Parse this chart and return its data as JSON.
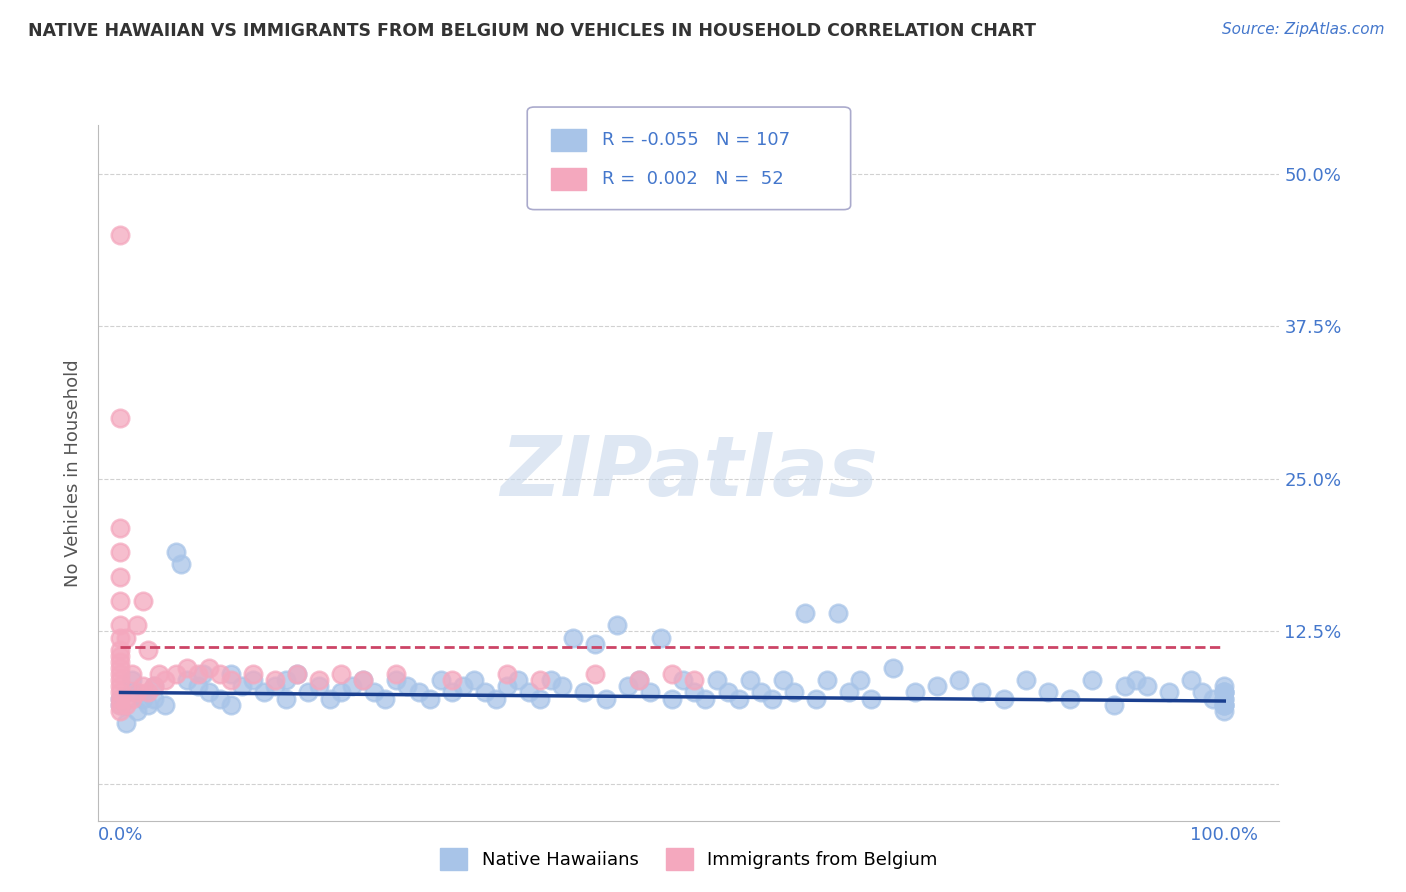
{
  "title": "NATIVE HAWAIIAN VS IMMIGRANTS FROM BELGIUM NO VEHICLES IN HOUSEHOLD CORRELATION CHART",
  "source": "Source: ZipAtlas.com",
  "ylabel": "No Vehicles in Household",
  "xlim": [
    -0.02,
    1.05
  ],
  "ylim": [
    -0.03,
    0.54
  ],
  "ytick_vals": [
    0.0,
    0.125,
    0.25,
    0.375,
    0.5
  ],
  "ytick_labels": [
    "",
    "12.5%",
    "25.0%",
    "37.5%",
    "50.0%"
  ],
  "xtick_vals": [
    0.0,
    0.25,
    0.5,
    0.75,
    1.0
  ],
  "xtick_labels": [
    "0.0%",
    "",
    "",
    "",
    "100.0%"
  ],
  "r_blue": -0.055,
  "n_blue": 107,
  "r_pink": 0.002,
  "n_pink": 52,
  "blue_scatter_color": "#a8c4e8",
  "pink_scatter_color": "#f4a8be",
  "blue_line_color": "#1a3f8f",
  "pink_line_color": "#cc4466",
  "grid_color": "#cccccc",
  "tick_color": "#4477cc",
  "legend_blue_label": "Native Hawaiians",
  "legend_pink_label": "Immigrants from Belgium",
  "watermark": "ZIPatlas",
  "blue_line_y_start": 0.075,
  "blue_line_y_end": 0.068,
  "pink_line_y": 0.112,
  "pink_line_x_end": 1.0,
  "blue_x": [
    0.0,
    0.0,
    0.005,
    0.01,
    0.01,
    0.015,
    0.02,
    0.025,
    0.03,
    0.03,
    0.04,
    0.05,
    0.055,
    0.06,
    0.07,
    0.075,
    0.08,
    0.09,
    0.1,
    0.1,
    0.11,
    0.12,
    0.13,
    0.14,
    0.15,
    0.15,
    0.16,
    0.17,
    0.18,
    0.19,
    0.2,
    0.21,
    0.22,
    0.23,
    0.24,
    0.25,
    0.26,
    0.27,
    0.28,
    0.29,
    0.3,
    0.31,
    0.32,
    0.33,
    0.34,
    0.35,
    0.36,
    0.37,
    0.38,
    0.39,
    0.4,
    0.41,
    0.42,
    0.43,
    0.44,
    0.45,
    0.46,
    0.47,
    0.48,
    0.49,
    0.5,
    0.51,
    0.52,
    0.53,
    0.54,
    0.55,
    0.56,
    0.57,
    0.58,
    0.59,
    0.6,
    0.61,
    0.62,
    0.63,
    0.64,
    0.65,
    0.66,
    0.67,
    0.68,
    0.7,
    0.72,
    0.74,
    0.76,
    0.78,
    0.8,
    0.82,
    0.84,
    0.86,
    0.88,
    0.9,
    0.91,
    0.92,
    0.93,
    0.95,
    0.97,
    0.98,
    0.99,
    1.0,
    1.0,
    1.0,
    1.0,
    1.0,
    1.0,
    1.0,
    1.0,
    1.0,
    1.0
  ],
  "blue_y": [
    0.065,
    0.07,
    0.05,
    0.075,
    0.085,
    0.06,
    0.07,
    0.065,
    0.08,
    0.07,
    0.065,
    0.19,
    0.18,
    0.085,
    0.08,
    0.09,
    0.075,
    0.07,
    0.09,
    0.065,
    0.08,
    0.085,
    0.075,
    0.08,
    0.07,
    0.085,
    0.09,
    0.075,
    0.08,
    0.07,
    0.075,
    0.08,
    0.085,
    0.075,
    0.07,
    0.085,
    0.08,
    0.075,
    0.07,
    0.085,
    0.075,
    0.08,
    0.085,
    0.075,
    0.07,
    0.08,
    0.085,
    0.075,
    0.07,
    0.085,
    0.08,
    0.12,
    0.075,
    0.115,
    0.07,
    0.13,
    0.08,
    0.085,
    0.075,
    0.12,
    0.07,
    0.085,
    0.075,
    0.07,
    0.085,
    0.075,
    0.07,
    0.085,
    0.075,
    0.07,
    0.085,
    0.075,
    0.14,
    0.07,
    0.085,
    0.14,
    0.075,
    0.085,
    0.07,
    0.095,
    0.075,
    0.08,
    0.085,
    0.075,
    0.07,
    0.085,
    0.075,
    0.07,
    0.085,
    0.065,
    0.08,
    0.085,
    0.08,
    0.075,
    0.085,
    0.075,
    0.07,
    0.065,
    0.075,
    0.07,
    0.08,
    0.065,
    0.06,
    0.075,
    0.07,
    0.065,
    0.075
  ],
  "pink_x": [
    0.0,
    0.0,
    0.0,
    0.0,
    0.0,
    0.0,
    0.0,
    0.0,
    0.0,
    0.0,
    0.0,
    0.0,
    0.0,
    0.0,
    0.0,
    0.0,
    0.0,
    0.0,
    0.0,
    0.005,
    0.005,
    0.01,
    0.01,
    0.015,
    0.015,
    0.02,
    0.02,
    0.025,
    0.025,
    0.03,
    0.035,
    0.04,
    0.05,
    0.06,
    0.07,
    0.08,
    0.09,
    0.1,
    0.12,
    0.14,
    0.16,
    0.18,
    0.2,
    0.22,
    0.25,
    0.3,
    0.35,
    0.38,
    0.43,
    0.47,
    0.5,
    0.52
  ],
  "pink_y": [
    0.06,
    0.065,
    0.07,
    0.075,
    0.08,
    0.085,
    0.09,
    0.095,
    0.1,
    0.105,
    0.11,
    0.12,
    0.13,
    0.15,
    0.17,
    0.19,
    0.21,
    0.45,
    0.3,
    0.065,
    0.12,
    0.07,
    0.09,
    0.075,
    0.13,
    0.08,
    0.15,
    0.075,
    0.11,
    0.08,
    0.09,
    0.085,
    0.09,
    0.095,
    0.09,
    0.095,
    0.09,
    0.085,
    0.09,
    0.085,
    0.09,
    0.085,
    0.09,
    0.085,
    0.09,
    0.085,
    0.09,
    0.085,
    0.09,
    0.085,
    0.09,
    0.085
  ]
}
